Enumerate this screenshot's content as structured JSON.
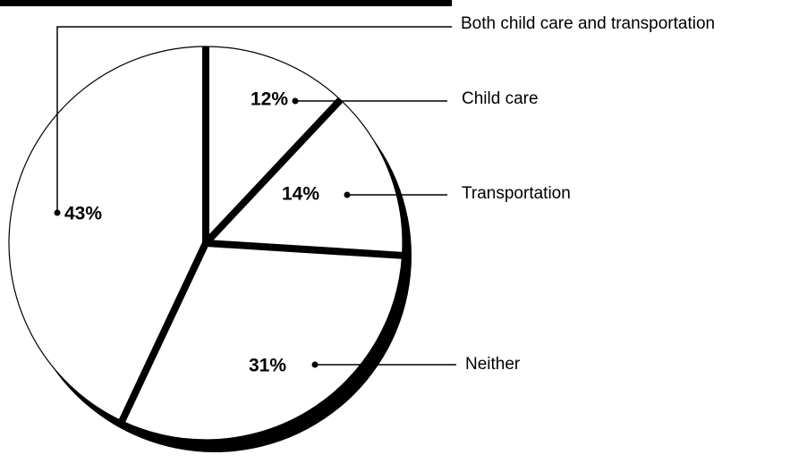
{
  "chart_data": {
    "type": "pie",
    "categories": [
      "Child care",
      "Transportation",
      "Neither",
      "Both child care and transportation"
    ],
    "values": [
      12,
      14,
      31,
      43
    ],
    "value_labels": [
      "12%",
      "14%",
      "31%",
      "43%"
    ],
    "color": "#ffffff"
  }
}
